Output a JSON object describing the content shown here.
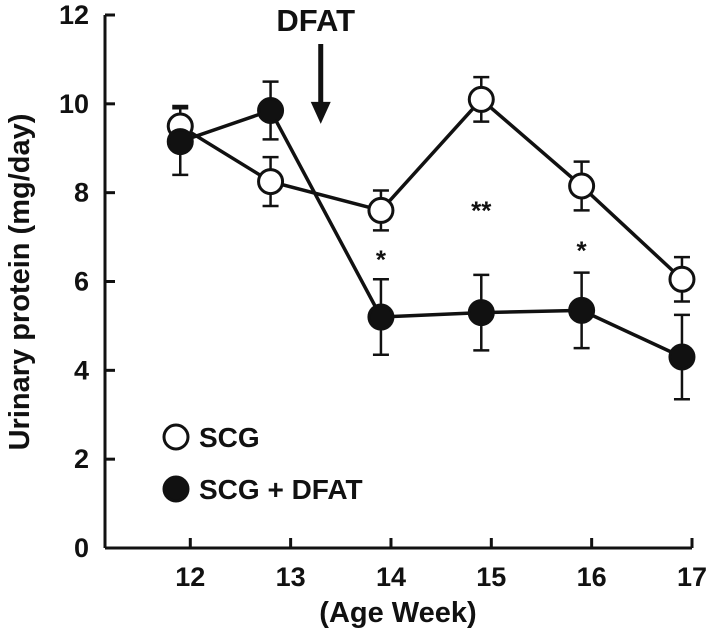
{
  "chart_data": {
    "type": "line",
    "title": "",
    "xlabel": "(Age Week)",
    "ylabel": "Urinary protein (mg/day)",
    "x": [
      12,
      13,
      14,
      15,
      16,
      17
    ],
    "x_ticks": [
      "12",
      "13",
      "14",
      "15",
      "16",
      "17"
    ],
    "y_ticks": [
      "0",
      "2",
      "4",
      "6",
      "8",
      "10",
      "12"
    ],
    "xlim": [
      11.15,
      17
    ],
    "ylim": [
      0,
      12
    ],
    "grid": false,
    "legend_position": "bottom-left",
    "series": [
      {
        "name": "SCG",
        "marker": "open-circle",
        "x": [
          11.9,
          12.8,
          13.9,
          14.9,
          15.9,
          16.9
        ],
        "values": [
          9.5,
          8.25,
          7.6,
          10.1,
          8.15,
          6.05
        ],
        "errors": [
          0.45,
          0.55,
          0.45,
          0.5,
          0.55,
          0.5
        ]
      },
      {
        "name": "SCG + DFAT",
        "marker": "filled-circle",
        "x": [
          11.9,
          12.8,
          13.9,
          14.9,
          15.9,
          16.9
        ],
        "values": [
          9.15,
          9.85,
          5.2,
          5.3,
          5.35,
          4.3
        ],
        "errors": [
          0.75,
          0.65,
          0.85,
          0.85,
          0.85,
          0.95
        ]
      }
    ],
    "annotations": [
      {
        "text": "DFAT",
        "type": "arrow-label",
        "x": 13.3,
        "y_top": 11.5,
        "y_arrow_end": 9.55
      },
      {
        "text": "*",
        "type": "significance",
        "x": 13.9,
        "y": 6.7
      },
      {
        "text": "**",
        "type": "significance",
        "x": 14.9,
        "y": 7.8
      },
      {
        "text": "*",
        "type": "significance",
        "x": 15.9,
        "y": 6.9
      }
    ]
  }
}
